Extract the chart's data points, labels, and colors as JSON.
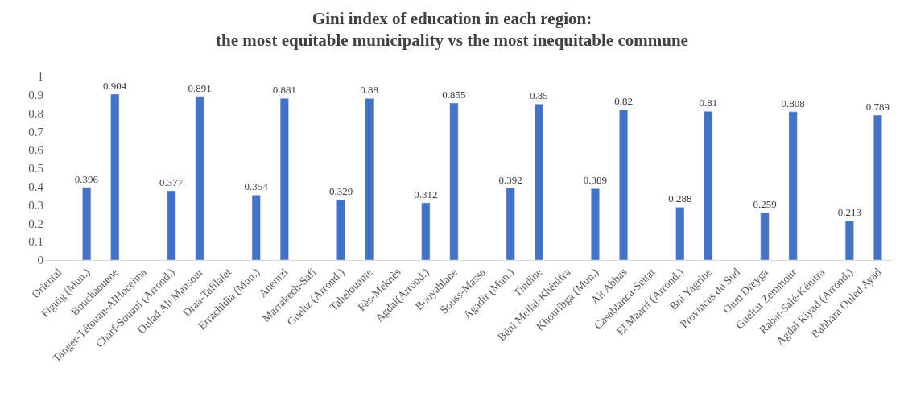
{
  "chart_data": {
    "type": "bar",
    "title": "Gini index of education in each region:\nthe most equitable municipality vs the most inequitable commune",
    "categories": [
      "Oriental",
      "Figuig (Mun.)",
      "Bouchaouene",
      "Tanger-Tétouan-AlHoceima",
      "Charf-Souani (Arrond.)",
      "Oulad Ali Mansour",
      "Draa-Tafilalet",
      "Errachidia (Mun.)",
      "Anemzi",
      "Marrakech-Safi",
      "Gueliz (Arrond.)",
      "Tahelouante",
      "Fès-Meknès",
      "Agdal(Arrond.)",
      "Bouyablane",
      "Souss-Massa",
      "Agadir (Mun.)",
      "Tindine",
      "Béni Mellal-Khénifra",
      "Khouribga (Mun.)",
      "Ait Abbas",
      "Casablanca-Settat",
      "El Maarif (Arrond.)",
      "Bni Yagrine",
      "Provinces du Sud",
      "Oum Dreyga",
      "Gueltat Zemmour",
      "Rabat-Salé-Kénitra",
      "Agdal Riyad (Arrond.)",
      "Bahhara Ouled Ayad"
    ],
    "values": [
      null,
      0.396,
      0.904,
      null,
      0.377,
      0.891,
      null,
      0.354,
      0.881,
      null,
      0.329,
      0.88,
      null,
      0.312,
      0.855,
      null,
      0.392,
      0.85,
      null,
      0.389,
      0.82,
      null,
      0.288,
      0.81,
      null,
      0.259,
      0.808,
      null,
      0.213,
      0.789
    ],
    "color": "#4472c4",
    "ylim": [
      0,
      1
    ],
    "yticks": [
      0,
      0.1,
      0.2,
      0.3,
      0.4,
      0.5,
      0.6,
      0.7,
      0.8,
      0.9,
      1
    ],
    "data_labels": true
  }
}
